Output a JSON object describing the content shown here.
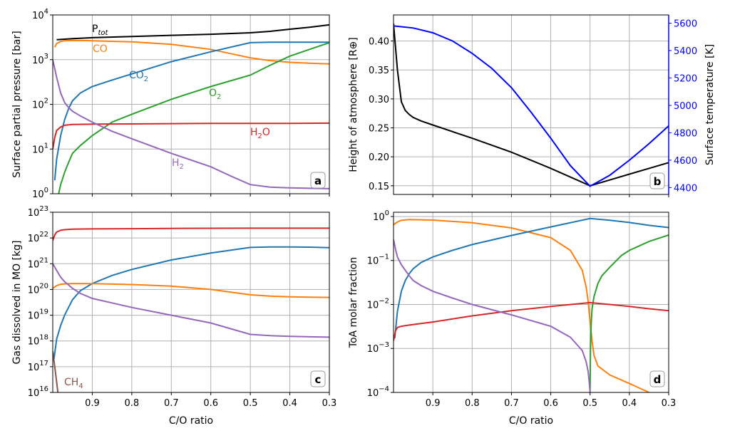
{
  "chart_data": [
    {
      "panel": "a",
      "type": "line",
      "xlabel": "",
      "ylabel": "Surface partial pressure [bar]",
      "xlim": [
        1.0,
        0.3
      ],
      "ylim": [
        1,
        10000
      ],
      "yscale": "log",
      "xticks": [
        "0.9",
        "0.8",
        "0.7",
        "0.6",
        "0.5",
        "0.4",
        "0.3"
      ],
      "yticks": [
        {
          "base": "10",
          "exp": "0"
        },
        {
          "base": "10",
          "exp": "1"
        },
        {
          "base": "10",
          "exp": "2"
        },
        {
          "base": "10",
          "exp": "3"
        },
        {
          "base": "10",
          "exp": "4"
        }
      ],
      "grid": true,
      "series": [
        {
          "key": "Ptot",
          "label_main": "P",
          "label_sub": "tot",
          "color": "#000000",
          "x": [
            0.99,
            0.95,
            0.9,
            0.8,
            0.7,
            0.6,
            0.5,
            0.45,
            0.4,
            0.35,
            0.3
          ],
          "y": [
            2800,
            2950,
            3100,
            3300,
            3500,
            3700,
            4000,
            4300,
            4800,
            5300,
            6000
          ]
        },
        {
          "key": "CO",
          "label_main": "CO",
          "label_sub": "",
          "color": "#ff7f0e",
          "x": [
            0.995,
            0.99,
            0.98,
            0.97,
            0.95,
            0.9,
            0.8,
            0.7,
            0.6,
            0.5,
            0.45,
            0.4,
            0.35,
            0.3
          ],
          "y": [
            1900,
            2300,
            2550,
            2650,
            2700,
            2650,
            2500,
            2200,
            1700,
            1100,
            950,
            870,
            830,
            800
          ]
        },
        {
          "key": "CO2",
          "label_main": "CO",
          "label_sub": "2",
          "color": "#1f77b4",
          "x": [
            0.995,
            0.99,
            0.98,
            0.97,
            0.96,
            0.95,
            0.93,
            0.9,
            0.85,
            0.8,
            0.7,
            0.6,
            0.5,
            0.45,
            0.4,
            0.35,
            0.3
          ],
          "y": [
            2,
            6,
            20,
            45,
            80,
            120,
            180,
            250,
            350,
            480,
            900,
            1500,
            2400,
            2450,
            2450,
            2450,
            2450
          ]
        },
        {
          "key": "O2",
          "label_main": "O",
          "label_sub": "2",
          "color": "#2ca02c",
          "x": [
            0.985,
            0.98,
            0.97,
            0.96,
            0.95,
            0.93,
            0.9,
            0.85,
            0.8,
            0.7,
            0.6,
            0.5,
            0.45,
            0.4,
            0.35,
            0.3
          ],
          "y": [
            1,
            1.6,
            3,
            5,
            8,
            12,
            20,
            40,
            60,
            130,
            250,
            450,
            750,
            1200,
            1700,
            2400
          ]
        },
        {
          "key": "H2O",
          "label_main": "H",
          "label_sub": "2",
          "label_tail": "O",
          "color": "#d62728",
          "x": [
            1.0,
            0.995,
            0.99,
            0.98,
            0.97,
            0.95,
            0.9,
            0.8,
            0.7,
            0.6,
            0.5,
            0.4,
            0.3
          ],
          "y": [
            10,
            18,
            26,
            31,
            34,
            35.5,
            36,
            36.5,
            37,
            37.5,
            37.5,
            37.5,
            38
          ]
        },
        {
          "key": "H2",
          "label_main": "H",
          "label_sub": "2",
          "color": "#9467bd",
          "x": [
            1.0,
            0.99,
            0.98,
            0.97,
            0.96,
            0.95,
            0.93,
            0.9,
            0.85,
            0.8,
            0.7,
            0.6,
            0.55,
            0.5,
            0.45,
            0.4,
            0.35,
            0.3
          ],
          "y": [
            1000,
            400,
            180,
            110,
            85,
            70,
            55,
            40,
            25,
            17,
            8,
            4,
            2.5,
            1.6,
            1.4,
            1.35,
            1.32,
            1.3
          ]
        }
      ]
    },
    {
      "panel": "b",
      "type": "line",
      "xlabel": "",
      "ylabel": "Height of atmosphere [R⊕]",
      "ylabel_right": "Surface temperature [K]",
      "xlim": [
        1.0,
        0.3
      ],
      "ylim": [
        0.135,
        0.445
      ],
      "ylim_right": [
        4350,
        5660
      ],
      "xticks": [
        "0.9",
        "0.8",
        "0.7",
        "0.6",
        "0.5",
        "0.4",
        "0.3"
      ],
      "yticks": [
        "0.15",
        "0.20",
        "0.25",
        "0.30",
        "0.35",
        "0.40"
      ],
      "yticks_right": [
        "4400",
        "4600",
        "4800",
        "5000",
        "5200",
        "5400",
        "5600"
      ],
      "grid": true,
      "series": [
        {
          "key": "height",
          "axis": "left",
          "color": "#000000",
          "x": [
            1.0,
            0.99,
            0.98,
            0.97,
            0.96,
            0.95,
            0.93,
            0.9,
            0.8,
            0.7,
            0.6,
            0.5,
            0.45,
            0.4,
            0.35,
            0.3
          ],
          "y": [
            0.43,
            0.35,
            0.295,
            0.28,
            0.273,
            0.268,
            0.262,
            0.255,
            0.232,
            0.208,
            0.18,
            0.15,
            0.16,
            0.17,
            0.18,
            0.19
          ]
        },
        {
          "key": "temperature",
          "axis": "right",
          "color": "#0000ff",
          "x": [
            1.0,
            0.95,
            0.9,
            0.85,
            0.8,
            0.75,
            0.7,
            0.65,
            0.6,
            0.55,
            0.5,
            0.45,
            0.4,
            0.35,
            0.3
          ],
          "y": [
            5580,
            5565,
            5530,
            5470,
            5380,
            5270,
            5130,
            4950,
            4760,
            4560,
            4410,
            4490,
            4600,
            4720,
            4850
          ]
        }
      ]
    },
    {
      "panel": "c",
      "type": "line",
      "xlabel": "C/O ratio",
      "ylabel": "Gas dissolved in MO [kg]",
      "xlim": [
        1.0,
        0.3
      ],
      "ylim": [
        1e+16,
        1e+23
      ],
      "yscale": "log",
      "xticks": [
        "0.9",
        "0.8",
        "0.7",
        "0.6",
        "0.5",
        "0.4",
        "0.3"
      ],
      "yticks": [
        {
          "base": "10",
          "exp": "16"
        },
        {
          "base": "10",
          "exp": "17"
        },
        {
          "base": "10",
          "exp": "18"
        },
        {
          "base": "10",
          "exp": "19"
        },
        {
          "base": "10",
          "exp": "20"
        },
        {
          "base": "10",
          "exp": "21"
        },
        {
          "base": "10",
          "exp": "22"
        },
        {
          "base": "10",
          "exp": "23"
        }
      ],
      "grid": true,
      "annotation": {
        "label_main": "CH",
        "label_sub": "4",
        "color": "#8c564b"
      },
      "series": [
        {
          "key": "H2O",
          "color": "#d62728",
          "x": [
            1.0,
            0.995,
            0.99,
            0.98,
            0.97,
            0.95,
            0.9,
            0.8,
            0.7,
            0.6,
            0.5,
            0.4,
            0.3
          ],
          "y": [
            8e+21,
            1.3e+22,
            1.7e+22,
            2e+22,
            2.1e+22,
            2.2e+22,
            2.25e+22,
            2.3e+22,
            2.35e+22,
            2.38e+22,
            2.4e+22,
            2.4e+22,
            2.4e+22
          ]
        },
        {
          "key": "CO2",
          "color": "#1f77b4",
          "x": [
            0.997,
            0.99,
            0.98,
            0.97,
            0.95,
            0.93,
            0.9,
            0.85,
            0.8,
            0.7,
            0.6,
            0.5,
            0.45,
            0.4,
            0.35,
            0.3
          ],
          "y": [
            2e+17,
            1.2e+18,
            4e+18,
            1e+19,
            4e+19,
            9e+19,
            1.7e+20,
            3.5e+20,
            6e+20,
            1.4e+21,
            2.6e+21,
            4.3e+21,
            4.5e+21,
            4.5e+21,
            4.4e+21,
            4.2e+21
          ]
        },
        {
          "key": "CO",
          "color": "#ff7f0e",
          "x": [
            1.0,
            0.99,
            0.98,
            0.97,
            0.95,
            0.9,
            0.8,
            0.7,
            0.6,
            0.5,
            0.45,
            0.4,
            0.35,
            0.3
          ],
          "y": [
            1.1e+20,
            1.4e+20,
            1.6e+20,
            1.65e+20,
            1.7e+20,
            1.68e+20,
            1.55e+20,
            1.35e+20,
            1e+20,
            6.2e+19,
            5.5e+19,
            5.2e+19,
            5e+19,
            4.9e+19
          ]
        },
        {
          "key": "H2",
          "color": "#9467bd",
          "x": [
            1.0,
            0.99,
            0.98,
            0.97,
            0.96,
            0.95,
            0.93,
            0.9,
            0.85,
            0.8,
            0.7,
            0.6,
            0.55,
            0.5,
            0.45,
            0.4,
            0.35,
            0.3
          ],
          "y": [
            1e+21,
            5.5e+20,
            3e+20,
            2e+20,
            1.5e+20,
            1.1e+20,
            7e+19,
            4.5e+19,
            3e+19,
            2e+19,
            1e+19,
            5e+18,
            3e+18,
            1.8e+18,
            1.6e+18,
            1.5e+18,
            1.45e+18,
            1.4e+18
          ]
        },
        {
          "key": "CH4",
          "color": "#8c564b",
          "x": [
            1.0,
            0.995,
            0.99,
            0.987
          ],
          "y": [
            4e+17,
            1e+17,
            2.5e+16,
            1e+16
          ]
        }
      ]
    },
    {
      "panel": "d",
      "type": "line",
      "xlabel": "C/O ratio",
      "ylabel": "ToA molar fraction",
      "xlim": [
        1.0,
        0.3
      ],
      "ylim": [
        0.0001,
        1.25
      ],
      "yscale": "log",
      "xticks": [
        "0.9",
        "0.8",
        "0.7",
        "0.6",
        "0.5",
        "0.4",
        "0.3"
      ],
      "yticks": [
        {
          "base": "10",
          "exp": "−4"
        },
        {
          "base": "10",
          "exp": "−3"
        },
        {
          "base": "10",
          "exp": "−2"
        },
        {
          "base": "10",
          "exp": "−1"
        },
        {
          "base": "10",
          "exp": "0"
        }
      ],
      "grid": true,
      "series": [
        {
          "key": "CO",
          "color": "#ff7f0e",
          "x": [
            1.0,
            0.99,
            0.98,
            0.96,
            0.9,
            0.8,
            0.7,
            0.6,
            0.55,
            0.52,
            0.51,
            0.505,
            0.5,
            0.495,
            0.49,
            0.48,
            0.45,
            0.4,
            0.35
          ],
          "y": [
            0.65,
            0.75,
            0.82,
            0.85,
            0.83,
            0.72,
            0.55,
            0.33,
            0.17,
            0.06,
            0.025,
            0.012,
            0.004,
            0.0015,
            0.0007,
            0.0004,
            0.00025,
            0.00016,
            0.0001
          ]
        },
        {
          "key": "CO2",
          "color": "#1f77b4",
          "x": [
            0.997,
            0.99,
            0.98,
            0.97,
            0.96,
            0.95,
            0.93,
            0.9,
            0.85,
            0.8,
            0.7,
            0.6,
            0.5,
            0.45,
            0.4,
            0.35,
            0.3
          ],
          "y": [
            0.0017,
            0.007,
            0.02,
            0.035,
            0.05,
            0.065,
            0.09,
            0.12,
            0.17,
            0.23,
            0.37,
            0.58,
            0.9,
            0.82,
            0.73,
            0.63,
            0.56
          ]
        },
        {
          "key": "O2",
          "color": "#2ca02c",
          "x": [
            0.5,
            0.499,
            0.497,
            0.495,
            0.49,
            0.48,
            0.47,
            0.45,
            0.42,
            0.4,
            0.35,
            0.3
          ],
          "y": [
            0.0001,
            0.001,
            0.004,
            0.008,
            0.015,
            0.03,
            0.045,
            0.07,
            0.13,
            0.17,
            0.27,
            0.38
          ]
        },
        {
          "key": "H2O",
          "color": "#d62728",
          "x": [
            1.0,
            0.995,
            0.99,
            0.98,
            0.96,
            0.93,
            0.9,
            0.8,
            0.7,
            0.6,
            0.5,
            0.45,
            0.4,
            0.35,
            0.3
          ],
          "y": [
            0.0015,
            0.0025,
            0.003,
            0.0032,
            0.0034,
            0.0037,
            0.004,
            0.0055,
            0.0072,
            0.009,
            0.011,
            0.01,
            0.009,
            0.008,
            0.0072
          ]
        },
        {
          "key": "H2",
          "color": "#9467bd",
          "x": [
            1.0,
            0.995,
            0.99,
            0.98,
            0.97,
            0.96,
            0.95,
            0.93,
            0.9,
            0.85,
            0.8,
            0.7,
            0.6,
            0.55,
            0.52,
            0.51,
            0.505,
            0.502,
            0.5
          ],
          "y": [
            0.3,
            0.18,
            0.12,
            0.08,
            0.06,
            0.045,
            0.035,
            0.027,
            0.02,
            0.014,
            0.01,
            0.0058,
            0.0032,
            0.0018,
            0.0009,
            0.0005,
            0.0003,
            0.00017,
            0.0001
          ]
        }
      ]
    }
  ]
}
